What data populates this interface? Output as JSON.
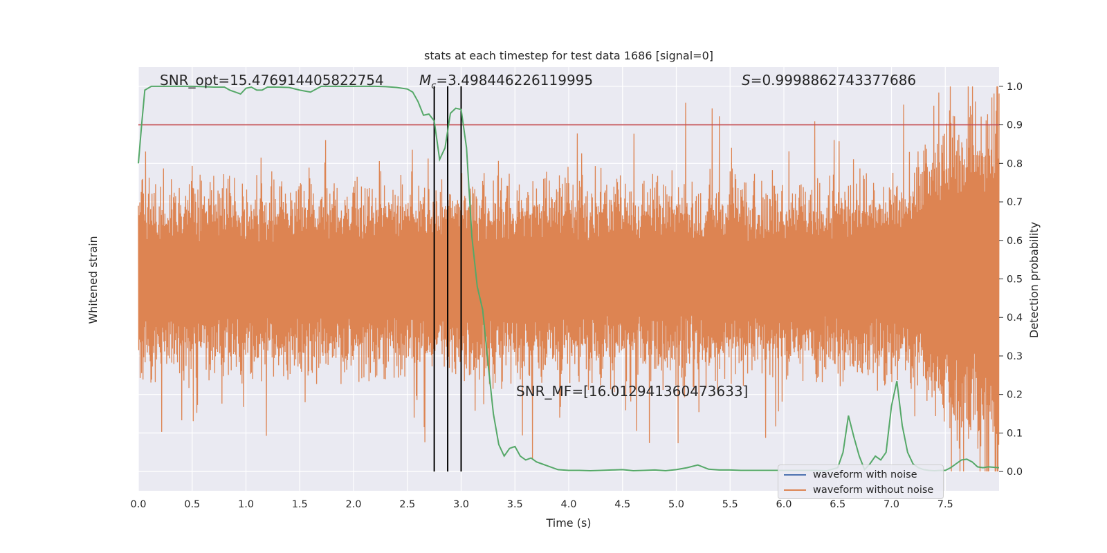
{
  "chart_data": {
    "type": "line",
    "title": "stats at each timestep for test data 1686 [signal=0]",
    "xlabel": "Time (s)",
    "ylabel_left": "Whitened strain",
    "ylabel_right": "Detection probability",
    "xlim": [
      0.0,
      8.0
    ],
    "ylim_right": [
      -0.05,
      1.05
    ],
    "grid": true,
    "legend_position": "bottom-right",
    "x_ticks": [
      "0.0",
      "0.5",
      "1.0",
      "1.5",
      "2.0",
      "2.5",
      "3.0",
      "3.5",
      "4.0",
      "4.5",
      "5.0",
      "5.5",
      "6.0",
      "6.5",
      "7.0",
      "7.5"
    ],
    "y_right_ticks": [
      "0.0",
      "0.1",
      "0.2",
      "0.3",
      "0.4",
      "0.5",
      "0.6",
      "0.7",
      "0.8",
      "0.9",
      "1.0"
    ],
    "annotations": {
      "snr_opt": "SNR_opt=15.476914405822754",
      "chirp_mass": "=3.498446226119995",
      "overlap": "=0.9998862743377686",
      "snr_mf": "SNR_MF=[16.012941360473633]"
    },
    "threshold": {
      "value": 0.9,
      "color": "#c44e52"
    },
    "vlines": [
      2.75,
      2.875,
      3.0
    ],
    "series": [
      {
        "name": "waveform with noise",
        "color": "#4c72b0"
      },
      {
        "name": "waveform without noise",
        "color": "#dd8452"
      }
    ],
    "detection_probability": {
      "color": "#55a868",
      "x": [
        0.0,
        0.03,
        0.06,
        0.12,
        0.2,
        0.3,
        0.4,
        0.5,
        0.6,
        0.7,
        0.8,
        0.85,
        0.9,
        0.95,
        1.0,
        1.05,
        1.1,
        1.15,
        1.2,
        1.3,
        1.4,
        1.5,
        1.6,
        1.7,
        1.8,
        1.9,
        2.0,
        2.1,
        2.2,
        2.3,
        2.4,
        2.5,
        2.55,
        2.6,
        2.65,
        2.7,
        2.75,
        2.8,
        2.85,
        2.9,
        2.95,
        3.0,
        3.05,
        3.1,
        3.15,
        3.2,
        3.25,
        3.3,
        3.35,
        3.4,
        3.45,
        3.5,
        3.55,
        3.6,
        3.65,
        3.7,
        3.75,
        3.8,
        3.9,
        4.0,
        4.1,
        4.2,
        4.3,
        4.4,
        4.5,
        4.6,
        4.7,
        4.8,
        4.9,
        5.0,
        5.1,
        5.2,
        5.3,
        5.4,
        5.5,
        5.6,
        5.7,
        5.8,
        5.9,
        6.0,
        6.1,
        6.2,
        6.3,
        6.4,
        6.5,
        6.55,
        6.6,
        6.65,
        6.7,
        6.75,
        6.8,
        6.85,
        6.9,
        6.95,
        7.0,
        7.05,
        7.1,
        7.15,
        7.2,
        7.25,
        7.3,
        7.35,
        7.4,
        7.45,
        7.5,
        7.55,
        7.6,
        7.65,
        7.7,
        7.75,
        7.8,
        7.85,
        7.9,
        8.0
      ],
      "y": [
        0.8,
        0.9,
        0.99,
        1.0,
        1.0,
        1.0,
        1.0,
        1.0,
        0.999,
        0.998,
        0.998,
        0.99,
        0.985,
        0.98,
        0.995,
        0.998,
        0.99,
        0.99,
        0.998,
        0.998,
        0.997,
        0.99,
        0.985,
        1.0,
        1.0,
        1.0,
        1.0,
        1.0,
        1.0,
        0.999,
        0.997,
        0.993,
        0.985,
        0.96,
        0.925,
        0.928,
        0.91,
        0.81,
        0.84,
        0.93,
        0.943,
        0.94,
        0.84,
        0.61,
        0.48,
        0.42,
        0.28,
        0.15,
        0.07,
        0.04,
        0.06,
        0.065,
        0.04,
        0.03,
        0.035,
        0.025,
        0.02,
        0.015,
        0.005,
        0.003,
        0.003,
        0.002,
        0.003,
        0.004,
        0.005,
        0.002,
        0.003,
        0.004,
        0.002,
        0.005,
        0.01,
        0.017,
        0.006,
        0.004,
        0.004,
        0.003,
        0.003,
        0.003,
        0.003,
        0.003,
        0.003,
        0.003,
        0.003,
        0.002,
        0.01,
        0.05,
        0.145,
        0.09,
        0.04,
        0.005,
        0.02,
        0.04,
        0.03,
        0.05,
        0.17,
        0.235,
        0.12,
        0.05,
        0.02,
        0.01,
        0.005,
        0.003,
        0.002,
        0.003,
        0.003,
        0.01,
        0.02,
        0.03,
        0.032,
        0.025,
        0.012,
        0.01,
        0.012,
        0.01
      ]
    }
  }
}
